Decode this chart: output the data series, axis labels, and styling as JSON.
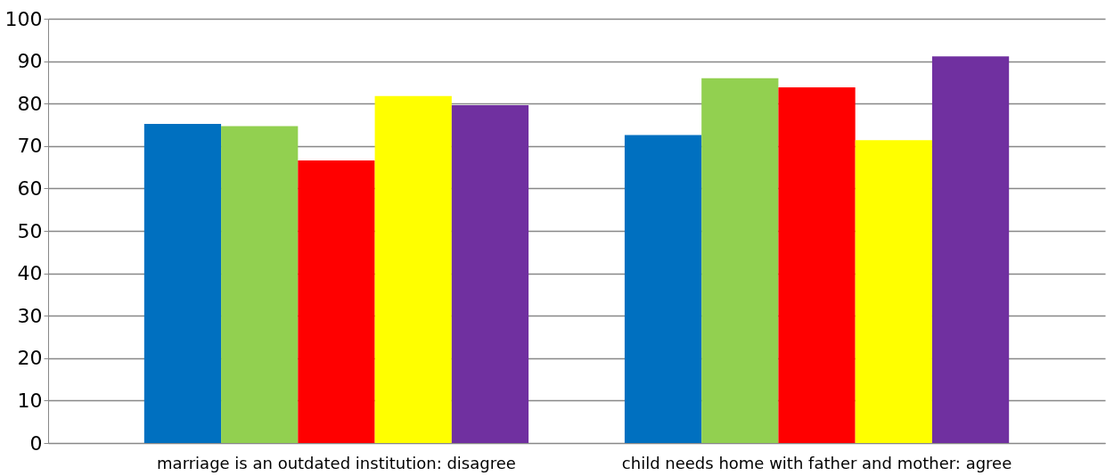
{
  "chart_data": {
    "type": "bar",
    "categories": [
      "marriage is an outdated institution: disagree",
      "child needs home with father and mother: agree"
    ],
    "series": [
      {
        "color": "#0070c0",
        "values": [
          75.2,
          72.6
        ]
      },
      {
        "color": "#92d050",
        "values": [
          74.7,
          86.0
        ]
      },
      {
        "color": "#ff0000",
        "values": [
          66.6,
          83.8
        ]
      },
      {
        "color": "#ffff00",
        "values": [
          81.8,
          71.4
        ]
      },
      {
        "color": "#7030a0",
        "values": [
          79.6,
          91.1
        ]
      }
    ],
    "ylim": [
      0,
      100
    ],
    "yticks": [
      0,
      10,
      20,
      30,
      40,
      50,
      60,
      70,
      80,
      90,
      100
    ],
    "grid": "y",
    "legend": false
  }
}
